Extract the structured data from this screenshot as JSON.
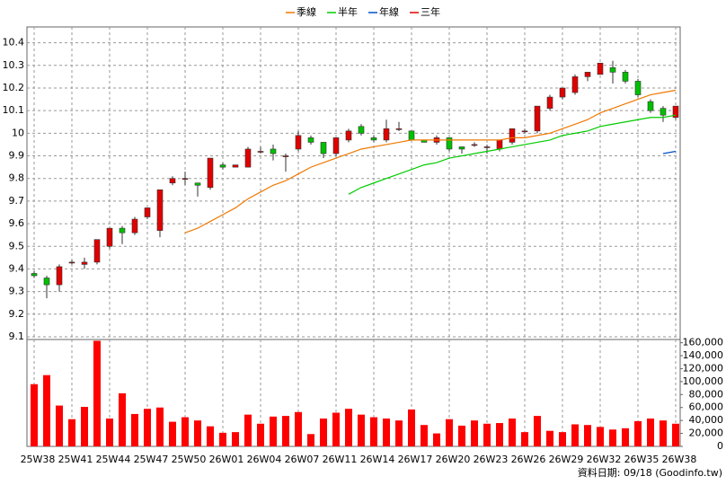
{
  "chart_data": [
    {
      "type": "candlestick",
      "categories": [
        "25W38",
        null,
        null,
        "25W41",
        null,
        null,
        "25W44",
        null,
        null,
        "25W47",
        null,
        null,
        "25W50",
        null,
        null,
        "26W01",
        null,
        null,
        "26W04",
        null,
        null,
        "26W07",
        null,
        null,
        "26W11",
        null,
        null,
        "26W14",
        null,
        null,
        "26W17",
        null,
        null,
        "26W20",
        null,
        null,
        "26W23",
        null,
        null,
        "26W26",
        null,
        null,
        "26W29",
        null,
        null,
        "26W32",
        null,
        null,
        "26W35",
        null,
        null,
        "26W38"
      ],
      "open": [
        9.38,
        9.36,
        9.33,
        9.43,
        9.42,
        9.43,
        9.5,
        9.58,
        9.56,
        9.63,
        9.57,
        9.78,
        9.8,
        9.78,
        9.76,
        9.86,
        9.85,
        9.85,
        9.92,
        9.93,
        9.9,
        9.93,
        9.98,
        9.96,
        9.91,
        9.97,
        10.03,
        9.98,
        9.97,
        10.02,
        10.01,
        9.97,
        9.96,
        9.98,
        9.94,
        9.95,
        9.94,
        9.93,
        9.96,
        10.01,
        10.01,
        10.11,
        10.16,
        10.18,
        10.25,
        10.26,
        10.29,
        10.27,
        10.23,
        10.14,
        10.11,
        10.07
      ],
      "high": [
        9.39,
        9.37,
        9.42,
        9.44,
        9.45,
        9.53,
        9.58,
        9.59,
        9.63,
        9.67,
        9.75,
        9.81,
        9.83,
        9.78,
        9.89,
        9.87,
        9.86,
        9.94,
        9.94,
        9.95,
        9.91,
        10.01,
        9.99,
        9.96,
        9.98,
        10.02,
        10.04,
        9.99,
        10.06,
        10.05,
        10.01,
        9.97,
        9.99,
        9.98,
        9.94,
        9.96,
        9.95,
        9.97,
        10.02,
        10.02,
        10.12,
        10.17,
        10.2,
        10.26,
        10.27,
        10.31,
        10.32,
        10.28,
        10.24,
        10.15,
        10.12,
        10.12
      ],
      "low": [
        9.36,
        9.27,
        9.3,
        9.42,
        9.4,
        9.42,
        9.49,
        9.51,
        9.55,
        9.62,
        9.54,
        9.77,
        9.77,
        9.72,
        9.75,
        9.84,
        9.85,
        9.85,
        9.91,
        9.88,
        9.83,
        9.92,
        9.95,
        9.89,
        9.9,
        9.96,
        9.99,
        9.96,
        9.96,
        10.01,
        9.97,
        9.96,
        9.95,
        9.92,
        9.91,
        9.94,
        9.91,
        9.92,
        9.95,
        10.0,
        10.0,
        10.1,
        10.15,
        10.17,
        10.23,
        10.26,
        10.22,
        10.22,
        10.16,
        10.09,
        10.05,
        10.06
      ],
      "close": [
        9.37,
        9.33,
        9.41,
        9.43,
        9.43,
        9.53,
        9.58,
        9.56,
        9.62,
        9.67,
        9.75,
        9.8,
        9.8,
        9.77,
        9.89,
        9.85,
        9.86,
        9.93,
        9.92,
        9.91,
        9.9,
        9.99,
        9.96,
        9.91,
        9.98,
        10.01,
        10.0,
        9.97,
        10.02,
        10.02,
        9.97,
        9.96,
        9.98,
        9.93,
        9.93,
        9.95,
        9.94,
        9.97,
        10.02,
        10.01,
        10.12,
        10.16,
        10.2,
        10.25,
        10.27,
        10.31,
        10.27,
        10.23,
        10.17,
        10.1,
        10.08,
        10.12
      ],
      "up_color": "#e00000",
      "down_color": "#00c000",
      "series": [
        {
          "name": "季線",
          "color": "#f07800",
          "values": [
            null,
            null,
            null,
            null,
            null,
            null,
            null,
            null,
            null,
            null,
            null,
            null,
            9.56,
            9.58,
            9.61,
            9.64,
            9.67,
            9.71,
            9.74,
            9.77,
            9.79,
            9.82,
            9.85,
            9.87,
            9.89,
            9.91,
            9.93,
            9.94,
            9.95,
            9.96,
            9.97,
            9.97,
            9.97,
            9.97,
            9.97,
            9.97,
            9.97,
            9.97,
            9.98,
            9.98,
            9.99,
            10.0,
            10.02,
            10.04,
            10.06,
            10.09,
            10.11,
            10.13,
            10.15,
            10.17,
            10.18,
            10.19
          ]
        },
        {
          "name": "半年",
          "color": "#00cc00",
          "values": [
            null,
            null,
            null,
            null,
            null,
            null,
            null,
            null,
            null,
            null,
            null,
            null,
            null,
            null,
            null,
            null,
            null,
            null,
            null,
            null,
            null,
            null,
            null,
            null,
            null,
            9.73,
            9.76,
            9.78,
            9.8,
            9.82,
            9.84,
            9.86,
            9.87,
            9.89,
            9.9,
            9.91,
            9.92,
            9.93,
            9.94,
            9.95,
            9.96,
            9.97,
            9.99,
            10.0,
            10.01,
            10.03,
            10.04,
            10.05,
            10.06,
            10.07,
            10.07,
            10.08
          ]
        },
        {
          "name": "年線",
          "color": "#0050c8",
          "values": [
            null,
            null,
            null,
            null,
            null,
            null,
            null,
            null,
            null,
            null,
            null,
            null,
            null,
            null,
            null,
            null,
            null,
            null,
            null,
            null,
            null,
            null,
            null,
            null,
            null,
            null,
            null,
            null,
            null,
            null,
            null,
            null,
            null,
            null,
            null,
            null,
            null,
            null,
            null,
            null,
            null,
            null,
            null,
            null,
            null,
            null,
            null,
            null,
            null,
            null,
            9.91,
            9.92
          ]
        },
        {
          "name": "三年",
          "color": "#e00000",
          "values": [
            null,
            null,
            null,
            null,
            null,
            null,
            null,
            null,
            null,
            null,
            null,
            null,
            null,
            null,
            null,
            null,
            null,
            null,
            null,
            null,
            null,
            null,
            null,
            null,
            null,
            null,
            null,
            null,
            null,
            null,
            null,
            null,
            null,
            null,
            null,
            null,
            null,
            null,
            null,
            null,
            null,
            null,
            null,
            null,
            null,
            null,
            null,
            null,
            null,
            null,
            null,
            null
          ]
        }
      ],
      "ylim": [
        9.088,
        10.47
      ],
      "yticks": [
        9.1,
        9.2,
        9.3,
        9.4,
        9.5,
        9.6,
        9.7,
        9.8,
        9.9,
        10,
        10.1,
        10.2,
        10.3,
        10.4
      ],
      "grid": true,
      "legend": "top"
    },
    {
      "type": "bar",
      "values": [
        96000,
        110000,
        63000,
        42000,
        61000,
        163000,
        43000,
        82000,
        50000,
        58000,
        60000,
        38000,
        45000,
        40000,
        31000,
        21000,
        22000,
        49000,
        35000,
        46000,
        47000,
        53000,
        19000,
        43000,
        52000,
        58000,
        49000,
        45000,
        43000,
        40000,
        57000,
        33000,
        20000,
        42000,
        32000,
        40000,
        35000,
        36000,
        43000,
        22000,
        47000,
        24000,
        22000,
        34000,
        33000,
        30000,
        26000,
        28000,
        39000,
        43000,
        40000,
        35000
      ],
      "color": "#ff0000",
      "ylim": [
        0,
        165000
      ],
      "yticks": [
        0,
        {
          "value": 20000,
          "label": "20,000"
        },
        {
          "value": 40000,
          "label": "40,000"
        },
        {
          "value": 60000,
          "label": "60,000"
        },
        {
          "value": 80000,
          "label": "80,000"
        },
        {
          "value": 100000,
          "label": "100,000"
        },
        {
          "value": 120000,
          "label": "120,000"
        },
        {
          "value": 140000,
          "label": "140,000"
        },
        {
          "value": 160000,
          "label": "160,000"
        }
      ],
      "footnote": "資料日期: 09/18 (Goodinfo.tw)"
    }
  ]
}
